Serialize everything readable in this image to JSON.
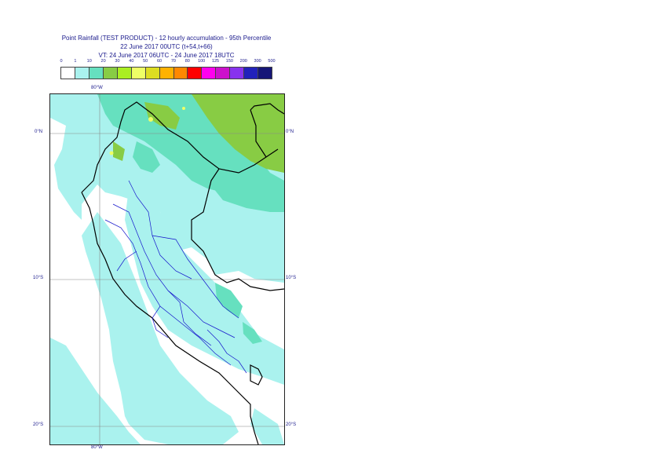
{
  "title": {
    "line1": "Point Rainfall (TEST PRODUCT) - 12 hourly accumulation - 95th Percentile",
    "line2": "22 June 2017 00UTC (t+54,t+66)",
    "line3": "VT: 24 June 2017 06UTC - 24 June 2017 18UTC"
  },
  "scale": {
    "labels": [
      "0",
      "1",
      "10",
      "20",
      "30",
      "40",
      "50",
      "60",
      "70",
      "80",
      "100",
      "125",
      "150",
      "200",
      "300",
      "500"
    ],
    "colors": [
      "#ffffff",
      "#aaf2ee",
      "#66e0bf",
      "#88cc44",
      "#aaee22",
      "#eeff66",
      "#dddd22",
      "#ffb200",
      "#ff8800",
      "#ff0000",
      "#ff00ee",
      "#cc11cc",
      "#8833ee",
      "#2222bb",
      "#161677"
    ]
  },
  "map": {
    "lon_labels": [
      "80°W"
    ],
    "lat_labels": [
      "0°N",
      "10°S",
      "20°S"
    ],
    "colors": {
      "light": "#aaf2ee",
      "medium": "#66e0bf",
      "green": "#88cc44",
      "yellow": "#eeff66",
      "coast": "#000000",
      "rivers": "#1515cc"
    }
  }
}
